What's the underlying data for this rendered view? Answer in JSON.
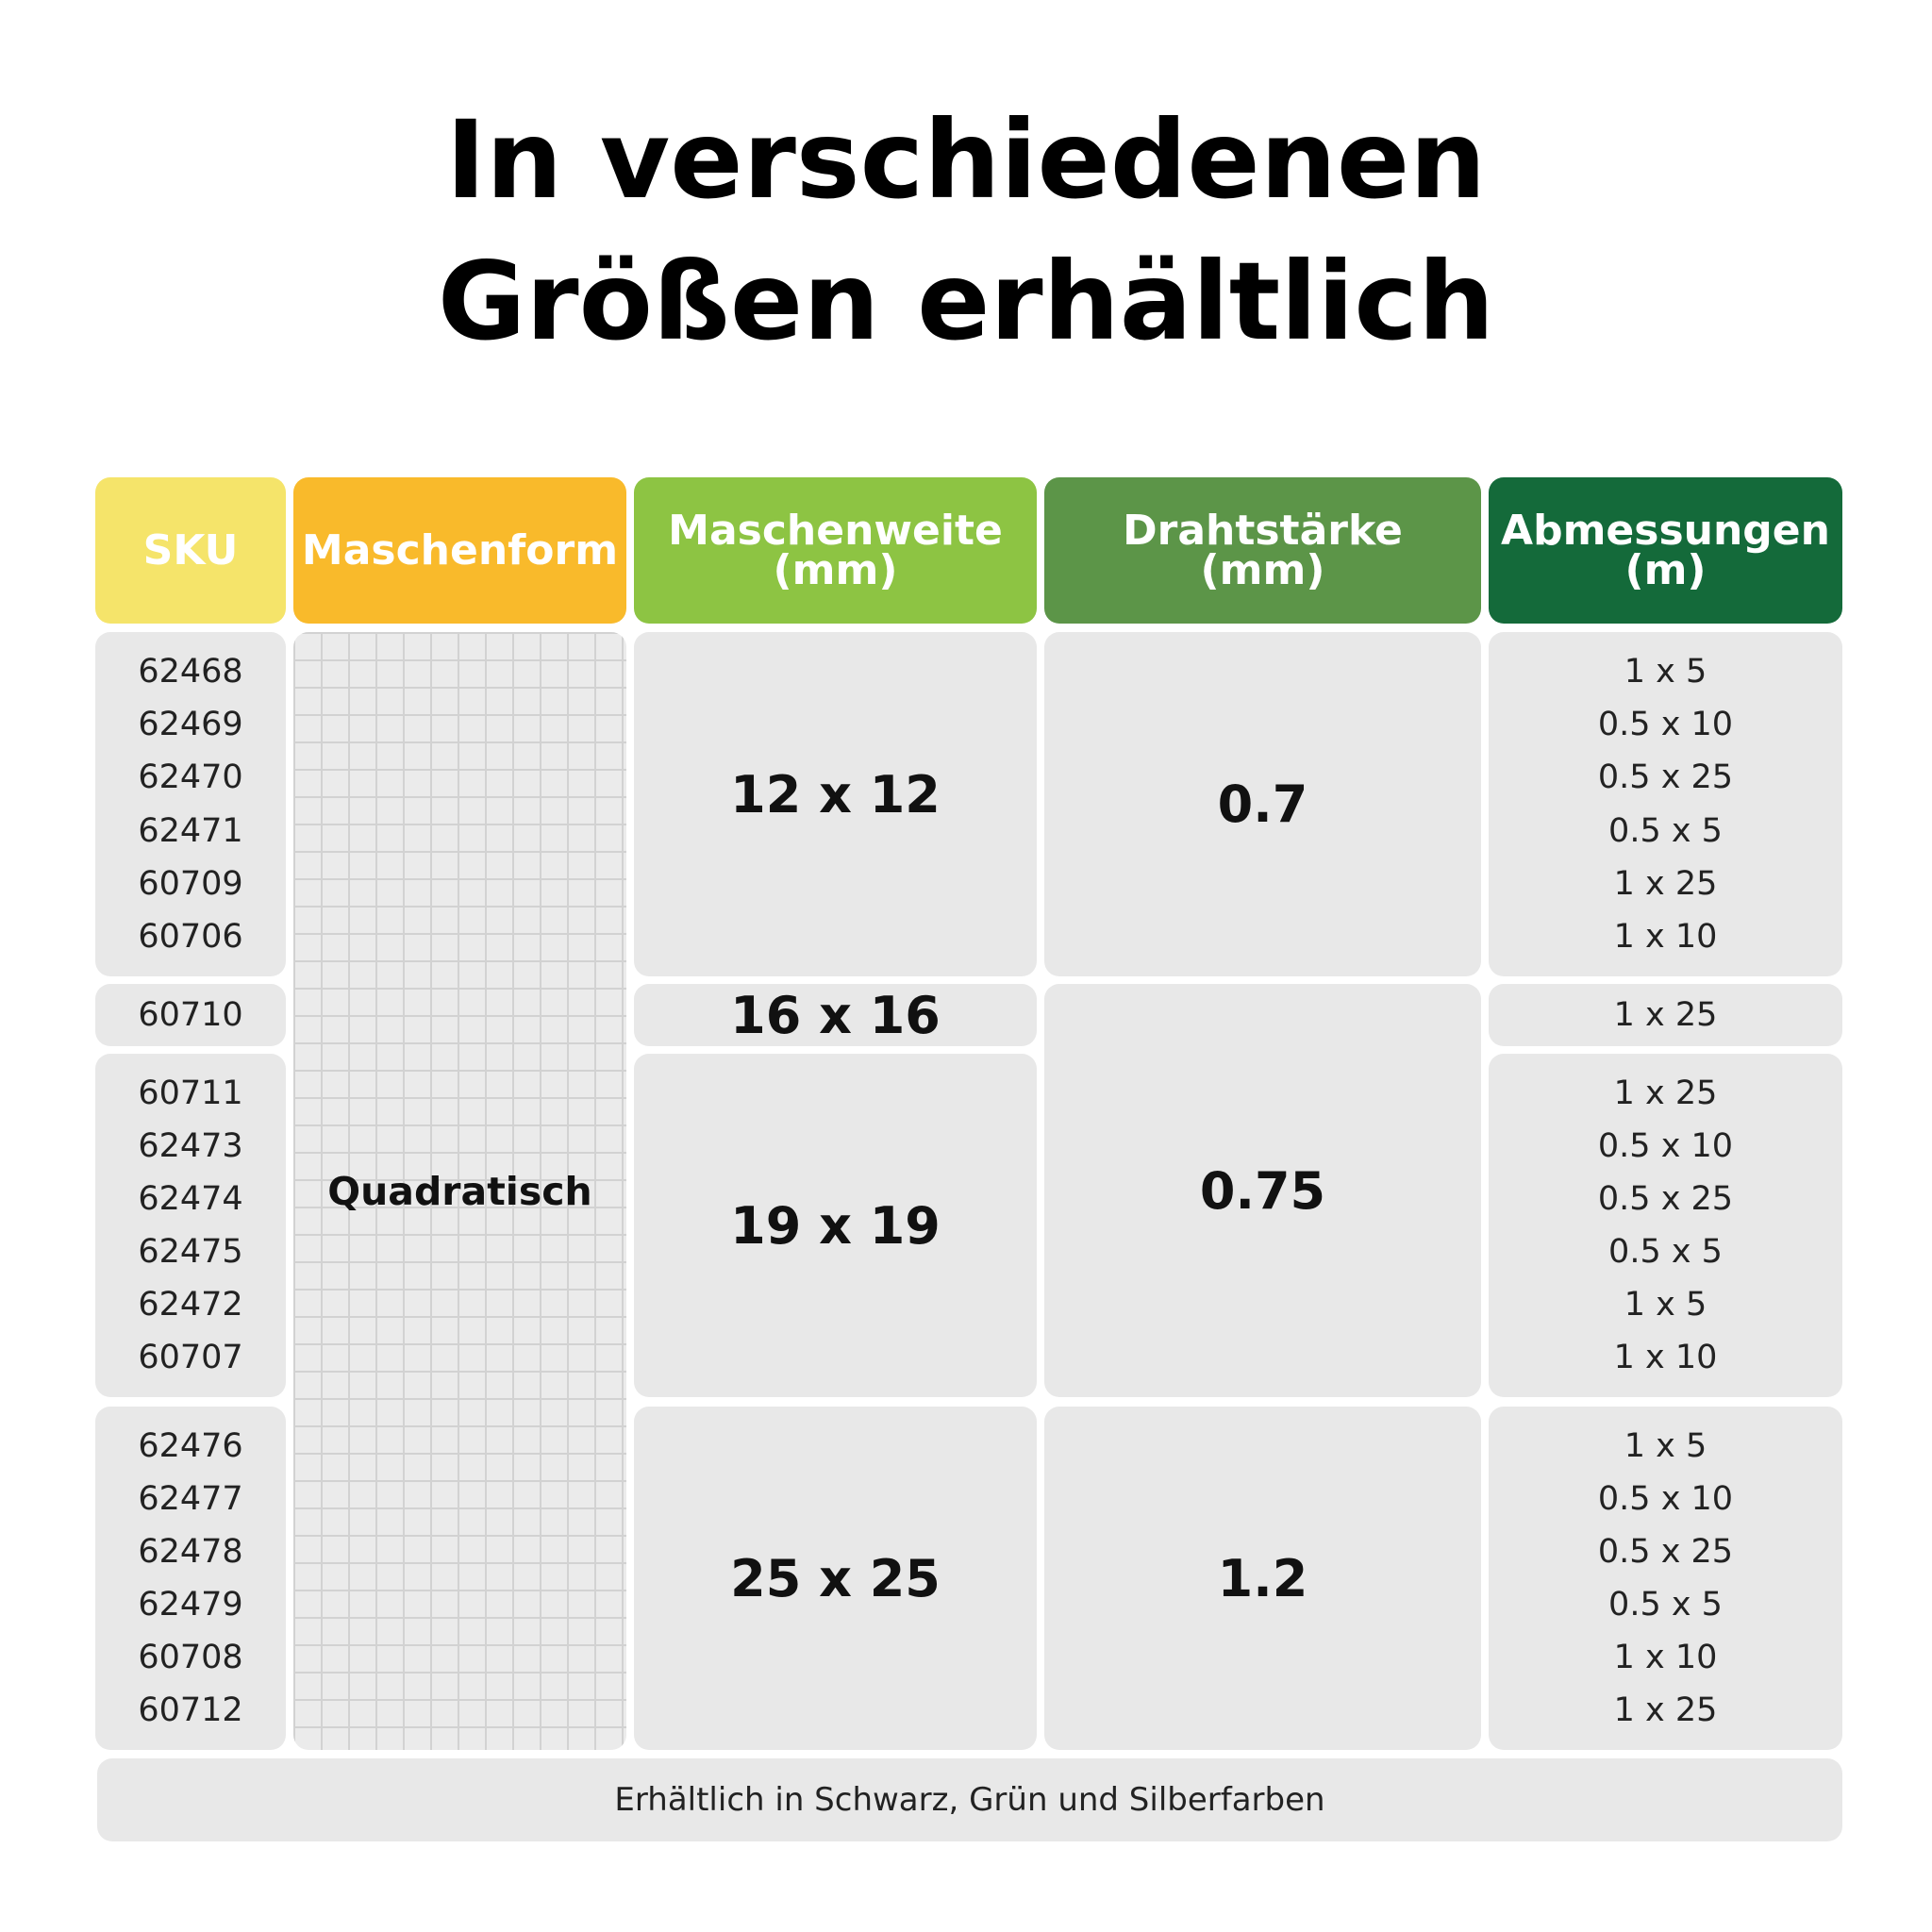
{
  "title": {
    "line1": "In verschiedenen",
    "line2": "Größen erhältlich"
  },
  "colors": {
    "sku": "#f5e46a",
    "maschenform": "#f9ba2b",
    "maschenweite": "#8dc443",
    "drahtstaerke": "#5c9548",
    "abmessungen": "#146a3a",
    "cell_bg": "#e8e8e8"
  },
  "headers": {
    "sku": "SKU",
    "maschenform": "Maschenform",
    "maschenweite_l1": "Maschenweite",
    "maschenweite_l2": "(mm)",
    "drahtstaerke_l1": "Drahtstärke",
    "drahtstaerke_l2": "(mm)",
    "abmessungen_l1": "Abmessungen",
    "abmessungen_l2": "(m)"
  },
  "maschenform_value": "Quadratisch",
  "groups": [
    {
      "skus": [
        "62468",
        "62469",
        "62470",
        "62471",
        "60709",
        "60706"
      ],
      "maschenweite": "12 x 12",
      "abmessungen": [
        "1 x 5",
        "0.5 x 10",
        "0.5 x 25",
        "0.5 x 5",
        "1 x 25",
        "1 x 10"
      ]
    },
    {
      "skus": [
        "60710"
      ],
      "maschenweite": "16 x 16",
      "abmessungen": [
        "1 x 25"
      ]
    },
    {
      "skus": [
        "60711",
        "62473",
        "62474",
        "62475",
        "62472",
        "60707"
      ],
      "maschenweite": "19 x 19",
      "abmessungen": [
        "1 x 25",
        "0.5 x 10",
        "0.5 x 25",
        "0.5 x 5",
        "1 x 5",
        "1 x 10"
      ]
    },
    {
      "skus": [
        "62476",
        "62477",
        "62478",
        "62479",
        "60708",
        "60712"
      ],
      "maschenweite": "25 x 25",
      "abmessungen": [
        "1 x 5",
        "0.5 x 10",
        "0.5 x 25",
        "0.5 x 5",
        "1 x 10",
        "1 x 25"
      ]
    }
  ],
  "drahtstaerke": [
    "0.7",
    "0.75",
    "1.2"
  ],
  "footer": "Erhältlich in Schwarz, Grün und Silberfarben"
}
